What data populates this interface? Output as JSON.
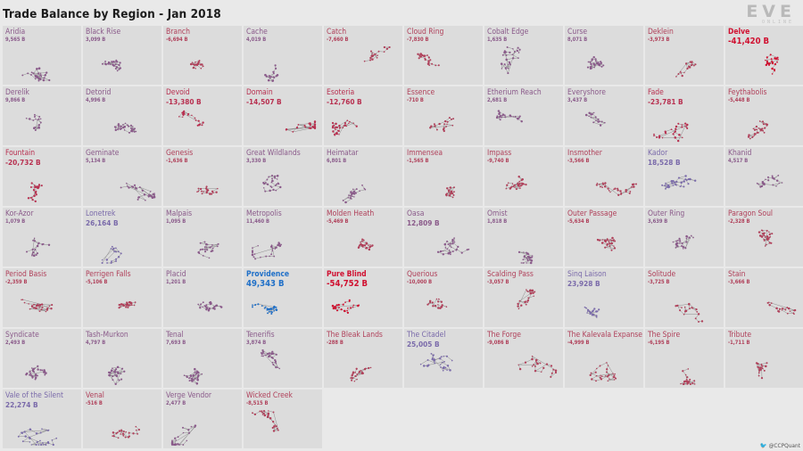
{
  "title": "Trade Balance by Region - Jan 2018",
  "logo": {
    "text": "EVE",
    "subtext": "ONLINE",
    "icon": "eve-online-logo"
  },
  "credit": {
    "handle": "@CCPQuant",
    "icon": "twitter-bird-icon"
  },
  "colors": {
    "deficit_strong": "#d01030",
    "deficit": "#b0405a",
    "neutral": "#8a5a8a",
    "surplus": "#7a6aaa",
    "surplus_strong": "#2070c8",
    "background": "#e9e9e9",
    "panel": "#dcdcdc"
  },
  "chart_data": {
    "type": "small-multiples",
    "title": "Trade Balance by Region - Jan 2018",
    "unit": "B",
    "regions": [
      {
        "name": "Aridia",
        "value_label": "9,565 B",
        "value": 9565
      },
      {
        "name": "Black Rise",
        "value_label": "3,099 B",
        "value": 3099
      },
      {
        "name": "Branch",
        "value_label": "-6,694 B",
        "value": -6694
      },
      {
        "name": "Cache",
        "value_label": "4,019 B",
        "value": 4019
      },
      {
        "name": "Catch",
        "value_label": "-7,660 B",
        "value": -7660
      },
      {
        "name": "Cloud Ring",
        "value_label": "-7,830 B",
        "value": -7830
      },
      {
        "name": "Cobalt Edge",
        "value_label": "1,635 B",
        "value": 1635
      },
      {
        "name": "Curse",
        "value_label": "8,071 B",
        "value": 8071
      },
      {
        "name": "Deklein",
        "value_label": "-3,973 B",
        "value": -3973
      },
      {
        "name": "Delve",
        "value_label": "-41,420 B",
        "value": -41420
      },
      {
        "name": "Derelik",
        "value_label": "9,866 B",
        "value": 9866
      },
      {
        "name": "Detorid",
        "value_label": "4,996 B",
        "value": 4996
      },
      {
        "name": "Devoid",
        "value_label": "-13,380 B",
        "value": -13380
      },
      {
        "name": "Domain",
        "value_label": "-14,507 B",
        "value": -14507
      },
      {
        "name": "Esoteria",
        "value_label": "-12,760 B",
        "value": -12760
      },
      {
        "name": "Essence",
        "value_label": "-710 B",
        "value": -710
      },
      {
        "name": "Etherium Reach",
        "value_label": "2,681 B",
        "value": 2681
      },
      {
        "name": "Everyshore",
        "value_label": "3,437 B",
        "value": 3437
      },
      {
        "name": "Fade",
        "value_label": "-23,781 B",
        "value": -23781
      },
      {
        "name": "Feythabolis",
        "value_label": "-5,448 B",
        "value": -5448
      },
      {
        "name": "Fountain",
        "value_label": "-20,732 B",
        "value": -20732
      },
      {
        "name": "Geminate",
        "value_label": "5,134 B",
        "value": 5134
      },
      {
        "name": "Genesis",
        "value_label": "-1,636 B",
        "value": -1636
      },
      {
        "name": "Great Wildlands",
        "value_label": "3,330 B",
        "value": 3330
      },
      {
        "name": "Heimatar",
        "value_label": "6,801 B",
        "value": 6801
      },
      {
        "name": "Immensea",
        "value_label": "-1,565 B",
        "value": -1565
      },
      {
        "name": "Impass",
        "value_label": "-9,740 B",
        "value": -9740
      },
      {
        "name": "Insmother",
        "value_label": "-3,566 B",
        "value": -3566
      },
      {
        "name": "Kador",
        "value_label": "18,528 B",
        "value": 18528
      },
      {
        "name": "Khanid",
        "value_label": "4,517 B",
        "value": 4517
      },
      {
        "name": "Kor-Azor",
        "value_label": "1,079 B",
        "value": 1079
      },
      {
        "name": "Lonetrek",
        "value_label": "26,164 B",
        "value": 26164
      },
      {
        "name": "Malpais",
        "value_label": "1,095 B",
        "value": 1095
      },
      {
        "name": "Metropolis",
        "value_label": "11,460 B",
        "value": 11460
      },
      {
        "name": "Molden Heath",
        "value_label": "-5,469 B",
        "value": -5469
      },
      {
        "name": "Oasa",
        "value_label": "12,809 B",
        "value": 12809
      },
      {
        "name": "Omist",
        "value_label": "1,818 B",
        "value": 1818
      },
      {
        "name": "Outer Passage",
        "value_label": "-5,634 B",
        "value": -5634
      },
      {
        "name": "Outer Ring",
        "value_label": "3,639 B",
        "value": 3639
      },
      {
        "name": "Paragon Soul",
        "value_label": "-2,328 B",
        "value": -2328
      },
      {
        "name": "Period Basis",
        "value_label": "-2,359 B",
        "value": -2359
      },
      {
        "name": "Perrigen Falls",
        "value_label": "-5,106 B",
        "value": -5106
      },
      {
        "name": "Placid",
        "value_label": "1,201 B",
        "value": 1201
      },
      {
        "name": "Providence",
        "value_label": "49,343 B",
        "value": 49343
      },
      {
        "name": "Pure Blind",
        "value_label": "-54,752 B",
        "value": -54752
      },
      {
        "name": "Querious",
        "value_label": "-10,000 B",
        "value": -10000
      },
      {
        "name": "Scalding Pass",
        "value_label": "-3,057 B",
        "value": -3057
      },
      {
        "name": "Sinq Laison",
        "value_label": "23,928 B",
        "value": 23928
      },
      {
        "name": "Solitude",
        "value_label": "-3,725 B",
        "value": -3725
      },
      {
        "name": "Stain",
        "value_label": "-3,666 B",
        "value": -3666
      },
      {
        "name": "Syndicate",
        "value_label": "2,493 B",
        "value": 2493
      },
      {
        "name": "Tash-Murkon",
        "value_label": "4,797 B",
        "value": 4797
      },
      {
        "name": "Tenal",
        "value_label": "7,693 B",
        "value": 7693
      },
      {
        "name": "Tenerifis",
        "value_label": "3,874 B",
        "value": 3874
      },
      {
        "name": "The Bleak Lands",
        "value_label": "-288 B",
        "value": -288
      },
      {
        "name": "The Citadel",
        "value_label": "25,005 B",
        "value": 25005
      },
      {
        "name": "The Forge",
        "value_label": "-9,086 B",
        "value": -9086
      },
      {
        "name": "The Kalevala Expanse",
        "value_label": "-4,999 B",
        "value": -4999
      },
      {
        "name": "The Spire",
        "value_label": "-6,195 B",
        "value": -6195
      },
      {
        "name": "Tribute",
        "value_label": "-1,711 B",
        "value": -1711
      },
      {
        "name": "Vale of the Silent",
        "value_label": "22,274 B",
        "value": 22274
      },
      {
        "name": "Venal",
        "value_label": "-516 B",
        "value": -516
      },
      {
        "name": "Verge Vendor",
        "value_label": "2,477 B",
        "value": 2477
      },
      {
        "name": "Wicked Creek",
        "value_label": "-8,515 B",
        "value": -8515
      }
    ]
  }
}
